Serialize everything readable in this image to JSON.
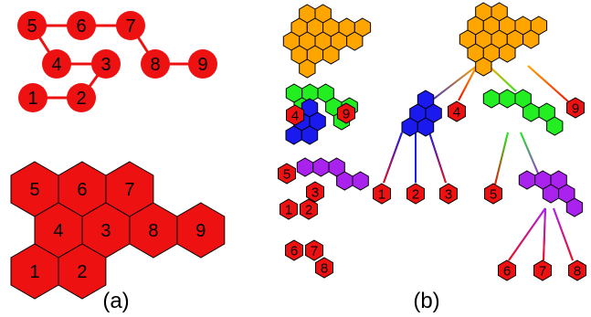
{
  "panel_a": {
    "caption": "(a)",
    "graph_nodes": [
      "5",
      "6",
      "7",
      "4",
      "3",
      "8",
      "9",
      "1",
      "2"
    ],
    "hex_cells": [
      "5",
      "6",
      "7",
      "4",
      "3",
      "8",
      "9",
      "1",
      "2"
    ]
  },
  "panel_b": {
    "caption": "(b)",
    "decomposition": {
      "sub_green": [
        "4",
        "9"
      ],
      "sub_purple": [
        "5",
        "3",
        "1",
        "2"
      ],
      "sub_small": [
        "6",
        "7",
        "8"
      ]
    },
    "tree": {
      "level1": [
        "4",
        "9"
      ],
      "blue_leaves": [
        "1",
        "2",
        "3"
      ],
      "green_child": "5",
      "purple_leaves": [
        "6",
        "7",
        "8"
      ]
    }
  },
  "colors": {
    "red": "#ee1111",
    "orange": "#ffa500",
    "green": "#22ee22",
    "blue": "#1a1aee",
    "purple": "#aa22ee"
  }
}
